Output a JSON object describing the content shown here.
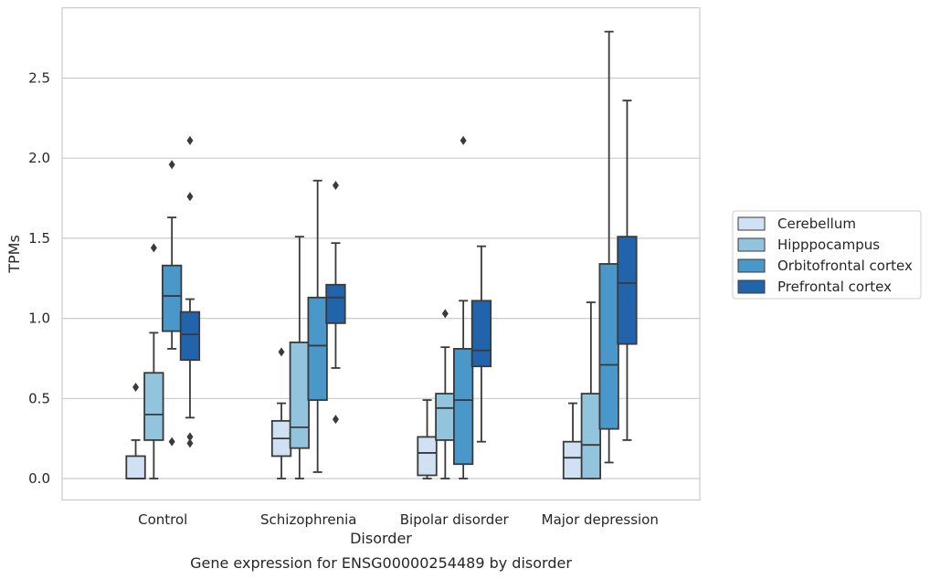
{
  "chart_data": {
    "type": "box",
    "xlabel": "Disorder",
    "ylabel": "TPMs",
    "caption": "Gene expression for ENSG00000254489 by disorder",
    "ylim": [
      -0.13,
      2.93
    ],
    "yticks": [
      "0.0",
      "0.5",
      "1.0",
      "1.5",
      "2.0",
      "2.5"
    ],
    "ytick_values": [
      0.0,
      0.5,
      1.0,
      1.5,
      2.0,
      2.5
    ],
    "grid": "horizontal",
    "legend_position": "right",
    "categories": [
      "Control",
      "Schizophrenia",
      "Bipolar disorder",
      "Major depression"
    ],
    "series": [
      {
        "name": "Cerebellum",
        "color": "#cfe1f2",
        "boxes": [
          {
            "q1": 0.0,
            "median": 0.0,
            "q3": 0.14,
            "whisker_low": 0.0,
            "whisker_high": 0.24,
            "outliers": [
              0.57
            ]
          },
          {
            "q1": 0.14,
            "median": 0.25,
            "q3": 0.36,
            "whisker_low": 0.0,
            "whisker_high": 0.47,
            "outliers": [
              0.79
            ]
          },
          {
            "q1": 0.02,
            "median": 0.16,
            "q3": 0.26,
            "whisker_low": 0.0,
            "whisker_high": 0.49,
            "outliers": []
          },
          {
            "q1": 0.0,
            "median": 0.13,
            "q3": 0.23,
            "whisker_low": 0.0,
            "whisker_high": 0.47,
            "outliers": []
          }
        ]
      },
      {
        "name": "Hipppocampus",
        "color": "#93c4de",
        "boxes": [
          {
            "q1": 0.24,
            "median": 0.4,
            "q3": 0.66,
            "whisker_low": 0.0,
            "whisker_high": 0.91,
            "outliers": [
              1.44
            ]
          },
          {
            "q1": 0.19,
            "median": 0.32,
            "q3": 0.85,
            "whisker_low": 0.0,
            "whisker_high": 1.51,
            "outliers": []
          },
          {
            "q1": 0.24,
            "median": 0.44,
            "q3": 0.53,
            "whisker_low": 0.0,
            "whisker_high": 0.82,
            "outliers": [
              1.03
            ]
          },
          {
            "q1": 0.0,
            "median": 0.21,
            "q3": 0.53,
            "whisker_low": 0.0,
            "whisker_high": 1.1,
            "outliers": []
          }
        ]
      },
      {
        "name": "Orbitofrontal cortex",
        "color": "#4a98c9",
        "boxes": [
          {
            "q1": 0.92,
            "median": 1.14,
            "q3": 1.33,
            "whisker_low": 0.81,
            "whisker_high": 1.63,
            "outliers": [
              0.23,
              1.96
            ]
          },
          {
            "q1": 0.49,
            "median": 0.83,
            "q3": 1.13,
            "whisker_low": 0.04,
            "whisker_high": 1.86,
            "outliers": []
          },
          {
            "q1": 0.09,
            "median": 0.49,
            "q3": 0.81,
            "whisker_low": 0.0,
            "whisker_high": 1.11,
            "outliers": [
              2.11
            ]
          },
          {
            "q1": 0.31,
            "median": 0.71,
            "q3": 1.34,
            "whisker_low": 0.1,
            "whisker_high": 2.79,
            "outliers": []
          }
        ]
      },
      {
        "name": "Prefrontal cortex",
        "color": "#2164ab",
        "boxes": [
          {
            "q1": 0.74,
            "median": 0.9,
            "q3": 1.04,
            "whisker_low": 0.38,
            "whisker_high": 1.12,
            "outliers": [
              0.22,
              0.26,
              1.76,
              2.11
            ]
          },
          {
            "q1": 0.97,
            "median": 1.13,
            "q3": 1.21,
            "whisker_low": 0.69,
            "whisker_high": 1.47,
            "outliers": [
              0.37,
              1.83
            ]
          },
          {
            "q1": 0.7,
            "median": 0.8,
            "q3": 1.11,
            "whisker_low": 0.23,
            "whisker_high": 1.45,
            "outliers": []
          },
          {
            "q1": 0.84,
            "median": 1.22,
            "q3": 1.51,
            "whisker_low": 0.24,
            "whisker_high": 2.36,
            "outliers": []
          }
        ]
      }
    ]
  }
}
